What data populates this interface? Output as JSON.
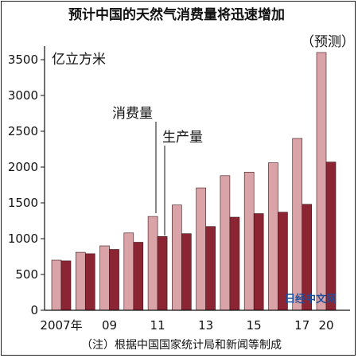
{
  "chart_data": {
    "type": "bar",
    "title": "预计中国的天然气消费量将迅速增加",
    "unit_label": "亿立方米",
    "projection_label": "（预测）",
    "footnote": "（注）根据中国国家统计局和新闻等制成",
    "watermark": "日经中文网",
    "categories": [
      "2007",
      "2008",
      "2009",
      "2010",
      "2011",
      "2012",
      "2013",
      "2014",
      "2015",
      "2016",
      "2017",
      "2020"
    ],
    "x_tick_labels": [
      "2007年",
      "",
      "09",
      "",
      "11",
      "",
      "13",
      "",
      "15",
      "",
      "17",
      "20"
    ],
    "ylim": [
      0,
      3600
    ],
    "yticks": [
      0,
      500,
      1000,
      1500,
      2000,
      2500,
      3000,
      3500
    ],
    "grid": false,
    "series": [
      {
        "name": "消费量",
        "color": "#d9a3a7",
        "values": [
          700,
          810,
          900,
          1080,
          1310,
          1470,
          1710,
          1880,
          1930,
          2060,
          2400,
          3600
        ]
      },
      {
        "name": "生产量",
        "color": "#8b2533",
        "values": [
          690,
          790,
          850,
          950,
          1030,
          1070,
          1170,
          1300,
          1350,
          1370,
          1480,
          2070
        ]
      }
    ]
  }
}
